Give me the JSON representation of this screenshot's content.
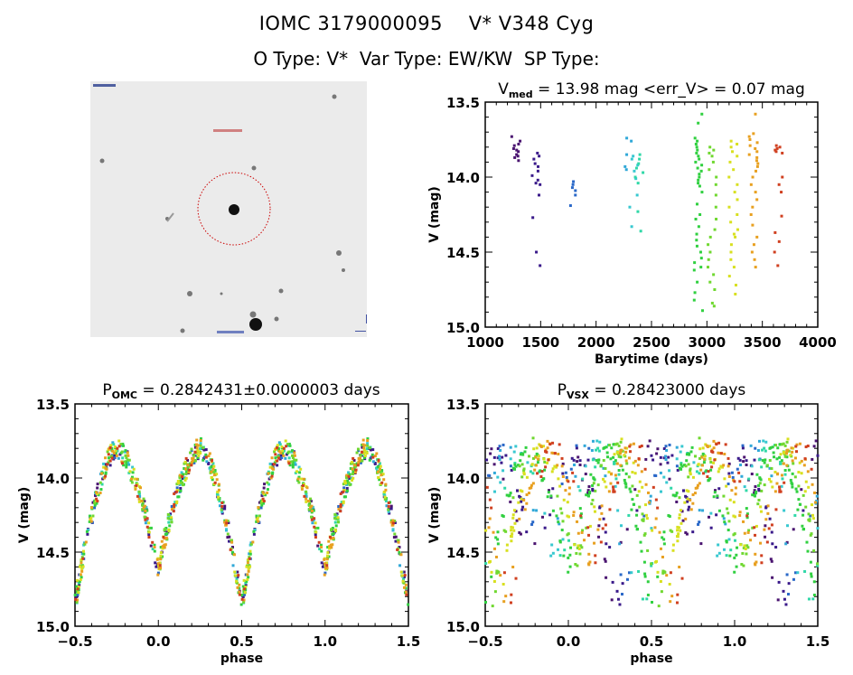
{
  "header": {
    "title_line1": "IOMC 3179000095    V* V348 Cyg",
    "title_line2": "O Type: V*  Var Type: EW/KW  SP Type:"
  },
  "finder_chart": {
    "description": "Grayscale sky image centered on target with red dotted circle",
    "marker_color": "#cc0000"
  },
  "chart_data": [
    {
      "id": "lightcurve",
      "type": "scatter",
      "title_main": "V",
      "title_sub": "med",
      "title_rest": " = 13.98 mag <err_V> = 0.07 mag",
      "xlabel": "Barytime (days)",
      "ylabel": "V (mag)",
      "xlim": [
        1000,
        4000
      ],
      "ylim": [
        15.0,
        13.5
      ],
      "y_inverted": true,
      "xticks": [
        "1000",
        "1500",
        "2000",
        "2500",
        "3000",
        "3500",
        "4000"
      ],
      "yticks": [
        "13.5",
        "14.0",
        "14.5",
        "15.0"
      ],
      "grid": false,
      "groups": [
        {
          "x": 1280,
          "color": "#4a1470",
          "mags": [
            13.73,
            13.76,
            13.79,
            13.81,
            13.83,
            13.85,
            13.87,
            13.89,
            13.78,
            13.82,
            13.86
          ]
        },
        {
          "x": 1460,
          "color": "#3a1a8a",
          "mags": [
            13.84,
            13.86,
            13.88,
            13.91,
            13.93,
            13.96,
            13.99,
            14.02,
            14.04,
            14.05,
            14.12,
            14.27,
            14.5,
            14.59
          ]
        },
        {
          "x": 1780,
          "color": "#2a68c8",
          "mags": [
            14.03,
            14.05,
            14.07,
            14.09,
            14.12,
            14.19
          ]
        },
        {
          "x": 2290,
          "color": "#30a8d8",
          "mags": [
            13.74,
            13.76,
            13.85,
            13.93,
            13.95
          ]
        },
        {
          "x": 2340,
          "color": "#38c8d0",
          "mags": [
            13.86,
            13.88,
            13.92,
            13.96,
            14.01,
            14.12,
            14.2,
            14.33
          ]
        },
        {
          "x": 2390,
          "color": "#30d8a8",
          "mags": [
            13.85,
            13.88,
            13.91,
            13.94,
            13.97,
            14.0,
            14.04,
            14.23,
            14.36
          ]
        },
        {
          "x": 2920,
          "color": "#30d040",
          "mags": [
            13.58,
            13.64,
            13.74,
            13.76,
            13.78,
            13.8,
            13.82,
            13.84,
            13.86,
            13.88,
            13.9,
            13.92,
            13.94,
            13.96,
            13.98,
            14.0,
            14.02,
            14.04,
            14.06,
            14.1,
            14.18,
            14.25,
            14.28,
            14.33,
            14.38,
            14.42,
            14.46,
            14.5,
            14.54,
            14.57,
            14.6,
            14.62,
            14.7,
            14.77,
            14.82,
            14.89
          ]
        },
        {
          "x": 3050,
          "color": "#70d830",
          "mags": [
            13.8,
            13.82,
            13.84,
            13.86,
            13.9,
            13.95,
            14.0,
            14.05,
            14.12,
            14.2,
            14.28,
            14.35,
            14.4,
            14.45,
            14.5,
            14.55,
            14.6,
            14.65,
            14.7,
            14.75,
            14.84,
            14.86
          ]
        },
        {
          "x": 3240,
          "color": "#d8e020",
          "mags": [
            13.76,
            13.78,
            13.8,
            13.83,
            13.86,
            13.9,
            13.95,
            14.0,
            14.05,
            14.1,
            14.15,
            14.2,
            14.25,
            14.3,
            14.35,
            14.38,
            14.4,
            14.45,
            14.5,
            14.55,
            14.6,
            14.66,
            14.72,
            14.78
          ]
        },
        {
          "x": 3420,
          "color": "#e8a020",
          "mags": [
            13.58,
            13.71,
            13.73,
            13.75,
            13.77,
            13.79,
            13.81,
            13.83,
            13.85,
            13.87,
            13.89,
            13.91,
            13.93,
            13.96,
            14.0,
            14.05,
            14.1,
            14.15,
            14.2,
            14.25,
            14.32,
            14.4,
            14.45,
            14.5,
            14.55,
            14.6
          ]
        },
        {
          "x": 3640,
          "color": "#d04020",
          "mags": [
            13.79,
            13.8,
            13.81,
            13.82,
            13.83,
            13.84,
            14.0,
            14.05,
            14.1,
            14.26,
            14.37,
            14.43,
            14.5,
            14.59
          ]
        }
      ]
    },
    {
      "id": "phase_omc",
      "type": "scatter",
      "title_main": "P",
      "title_sub": "OMC",
      "title_rest": " = 0.2842431±0.0000003 days",
      "xlabel": "phase",
      "ylabel": "V (mag)",
      "xlim": [
        -0.5,
        1.5
      ],
      "ylim": [
        15.0,
        13.5
      ],
      "y_inverted": true,
      "xticks": [
        "-0.5",
        "0.0",
        "0.5",
        "1.0",
        "1.5"
      ],
      "yticks": [
        "13.5",
        "14.0",
        "14.5",
        "15.0"
      ],
      "grid": false,
      "model": {
        "max_mag": 13.8,
        "primary_min_mag": 14.85,
        "secondary_min_mag": 14.6,
        "primary_min_phase": 0.0,
        "secondary_min_phase": 0.5
      }
    },
    {
      "id": "phase_vsx",
      "type": "scatter",
      "title_main": "P",
      "title_sub": "VSX",
      "title_rest": " = 0.28423000 days",
      "xlabel": "phase",
      "ylabel": "V (mag)",
      "xlim": [
        -0.5,
        1.5
      ],
      "ylim": [
        15.0,
        13.5
      ],
      "y_inverted": true,
      "xticks": [
        "-0.5",
        "0.0",
        "0.5",
        "1.0",
        "1.5"
      ],
      "yticks": [
        "13.5",
        "14.0",
        "14.5",
        "15.0"
      ],
      "grid": false,
      "model": {
        "max_mag": 13.8,
        "primary_min_mag": 14.85,
        "secondary_min_mag": 14.6,
        "primary_min_phase": 0.0,
        "secondary_min_phase": 0.5,
        "season_phase_drift": true
      }
    }
  ]
}
